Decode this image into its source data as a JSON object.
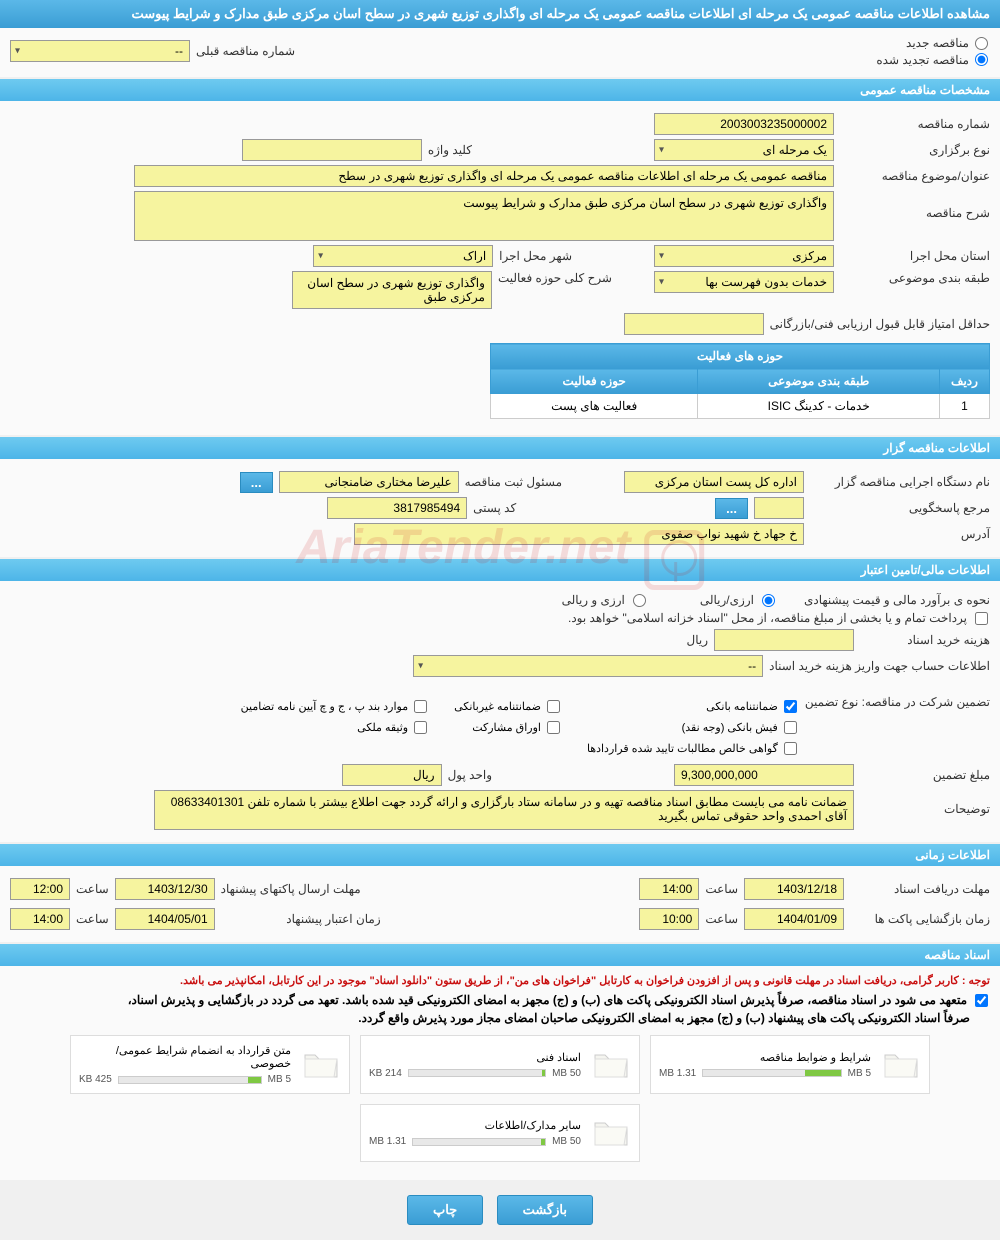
{
  "pageTitle": "مشاهده اطلاعات مناقصه عمومی یک مرحله ای اطلاعات مناقصه عمومی یک مرحله ای واگذاری توزیع شهری در سطح اسان مرکزی طبق مدارک و شرایط پیوست",
  "tenderStatus": {
    "new": "مناقصه جدید",
    "renewed": "مناقصه تجدید شده",
    "prevNumLabel": "شماره مناقصه قبلی",
    "prevNumValue": "--"
  },
  "sections": {
    "general": "مشخصات مناقصه عمومی",
    "organizer": "اطلاعات مناقصه گزار",
    "financial": "اطلاعات مالی/تامین اعتبار",
    "timing": "اطلاعات زمانی",
    "documents": "اسناد مناقصه"
  },
  "general": {
    "tenderNoLabel": "شماره مناقصه",
    "tenderNoValue": "2003003235000002",
    "typeLabel": "نوع برگزاری",
    "typeValue": "یک مرحله ای",
    "keywordLabel": "کلید واژه",
    "keywordValue": "",
    "subjectLabel": "عنوان/موضوع مناقصه",
    "subjectValue": "مناقصه عمومی یک مرحله ای اطلاعات مناقصه عمومی یک مرحله ای واگذاری توزیع شهری در سطح",
    "descLabel": "شرح مناقصه",
    "descValue": "واگذاری توزیع شهری در سطح اسان مرکزی طبق مدارک و شرایط پیوست",
    "provinceLabel": "استان محل اجرا",
    "provinceValue": "مرکزی",
    "cityLabel": "شهر محل اجرا",
    "cityValue": "اراک",
    "categoryLabel": "طبقه بندی موضوعی",
    "categoryValue": "خدمات بدون فهرست بها",
    "activityScopeLabel": "شرح کلی حوزه فعالیت",
    "activityScopeValue": "واگذاری توزیع شهری در سطح اسان مرکزی طبق",
    "minScoreLabel": "حداقل امتیاز قابل قبول ارزیابی فنی/بازرگانی",
    "minScoreValue": ""
  },
  "activityTable": {
    "header": "حوزه های فعالیت",
    "col1": "ردیف",
    "col2": "طبقه بندی موضوعی",
    "col3": "حوزه فعالیت",
    "row1_num": "1",
    "row1_cat": "خدمات - کدینگ ISIC",
    "row1_act": "فعالیت های  پست"
  },
  "organizer": {
    "orgNameLabel": "نام دستگاه اجرایی مناقصه گزار",
    "orgNameValue": "اداره کل پست استان مرکزی",
    "registrarLabel": "مسئول ثبت مناقصه",
    "registrarValue": "علیرضا مختاری ضامنجانی",
    "responderLabel": "مرجع پاسخگویی",
    "responderValue": "",
    "postalLabel": "کد پستی",
    "postalValue": "3817985494",
    "addressLabel": "آدرس",
    "addressValue": "خ جهاد خ شهید نواب صفوی"
  },
  "financial": {
    "estimateLabel": "نحوه ی برآورد مالی و قیمت پیشنهادی",
    "currencyLabel": "ارزی/ریالی",
    "foreign": "ارزی و ریالی",
    "rial": "ریالی",
    "paymentNote": "پرداخت تمام و یا بخشی از مبلغ مناقصه، از محل \"اسناد خزانه اسلامی\" خواهد بود.",
    "docCostLabel": "هزینه خرید اسناد",
    "docCostValue": "",
    "rialUnit": "ریال",
    "accountLabel": "اطلاعات حساب جهت واریز هزینه خرید اسناد",
    "accountValue": "--",
    "guaranteeLabel": "تضمین شرکت در مناقصه:   نوع تضمین",
    "g1": "ضمانتنامه بانکی",
    "g2": "ضمانتنامه غیربانکی",
    "g3": "موارد بند پ ، ج و چ آیین نامه تضامین",
    "g4": "فیش بانکی (وجه نقد)",
    "g5": "اوراق مشارکت",
    "g6": "وثیقه ملکی",
    "g7": "گواهی خالص مطالبات تایید شده قراردادها",
    "amountLabel": "مبلغ تضمین",
    "amountValue": "9,300,000,000",
    "unitLabel": "واحد پول",
    "unitValue": "ریال",
    "notesLabel": "توضیحات",
    "notesValue": "ضمانت نامه می بایست مطابق اسناد مناقصه تهیه و در سامانه ستاد بارگزاری و ارائه گردد جهت اطلاع بیشتر با شماره تلفن 08633401301 آقای احمدی واحد حقوقی تماس بگیرید"
  },
  "timing": {
    "receiveLabel": "مهلت دریافت اسناد",
    "receiveDate": "1403/12/18",
    "timeLabel": "ساعت",
    "receiveTime": "14:00",
    "submitLabel": "مهلت ارسال پاکتهای پیشنهاد",
    "submitDate": "1403/12/30",
    "submitTime": "12:00",
    "openLabel": "زمان بازگشایی پاکت ها",
    "openDate": "1404/01/09",
    "openTime": "10:00",
    "validLabel": "زمان اعتبار پیشنهاد",
    "validDate": "1404/05/01",
    "validTime": "14:00"
  },
  "documents": {
    "notice": "توجه : کاربر گرامی، دریافت اسناد در مهلت قانونی و پس از افزودن فراخوان به کارتابل \"فراخوان های من\"، از طریق ستون \"دانلود اسناد\" موجود در این کارتابل، امکانپذیر می باشد.",
    "commit1": "متعهد می شود در اسناد مناقصه، صرفاً پذیرش اسناد الکترونیکی پاکت های (ب) و (ج) مجهز به امضای الکترونیکی قید شده باشد. تعهد می گردد در بازگشایی و پذیرش اسناد،",
    "commit2": "صرفاً اسناد الکترونیکی پاکت های پیشنهاد (ب) و (ج) مجهز به امضای الکترونیکی صاحبان امضای مجاز مورد پذیرش واقع گردد.",
    "files": [
      {
        "name": "شرایط و ضوابط مناقصه",
        "size": "1.31 MB",
        "max": "5 MB",
        "fill": 26
      },
      {
        "name": "اسناد فنی",
        "size": "214 KB",
        "max": "50 MB",
        "fill": 2
      },
      {
        "name": "متن قرارداد به انضمام شرایط عمومی/خصوصی",
        "size": "425 KB",
        "max": "5 MB",
        "fill": 9
      },
      {
        "name": "سایر مدارک/اطلاعات",
        "size": "1.31 MB",
        "max": "50 MB",
        "fill": 3
      }
    ]
  },
  "buttons": {
    "back": "بازگشت",
    "print": "چاپ"
  },
  "colors": {
    "headerBg": "#4db5e8",
    "fieldBg": "#f6f49f",
    "barFill": "#7fc843"
  }
}
